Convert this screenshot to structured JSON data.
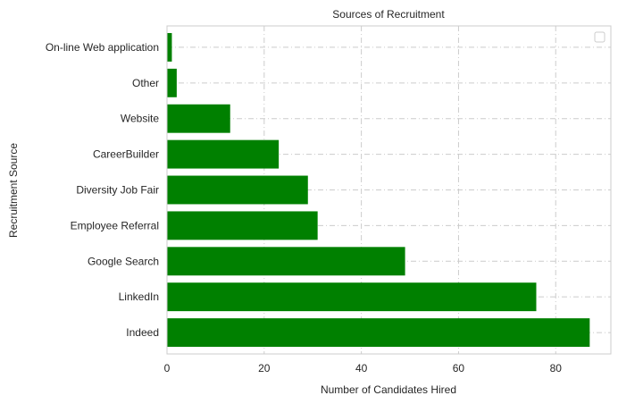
{
  "chart_data": {
    "type": "bar",
    "orientation": "horizontal",
    "title": "Sources of Recruitment",
    "xlabel": "Number of Candidates Hired",
    "ylabel": "Recruitment Source",
    "categories": [
      "Indeed",
      "LinkedIn",
      "Google Search",
      "Employee Referral",
      "Diversity Job Fair",
      "CareerBuilder",
      "Website",
      "Other",
      "On-line Web application"
    ],
    "values": [
      87,
      76,
      49,
      31,
      29,
      23,
      13,
      2,
      1
    ],
    "xlim": [
      0,
      91.35
    ],
    "xticks": [
      0,
      20,
      40,
      60,
      80
    ],
    "grid": true,
    "legend_position": "upper-right",
    "colors": {
      "bar": "#008000",
      "grid": "#cccccc",
      "frame": "#cccccc",
      "text": "#262626"
    }
  }
}
